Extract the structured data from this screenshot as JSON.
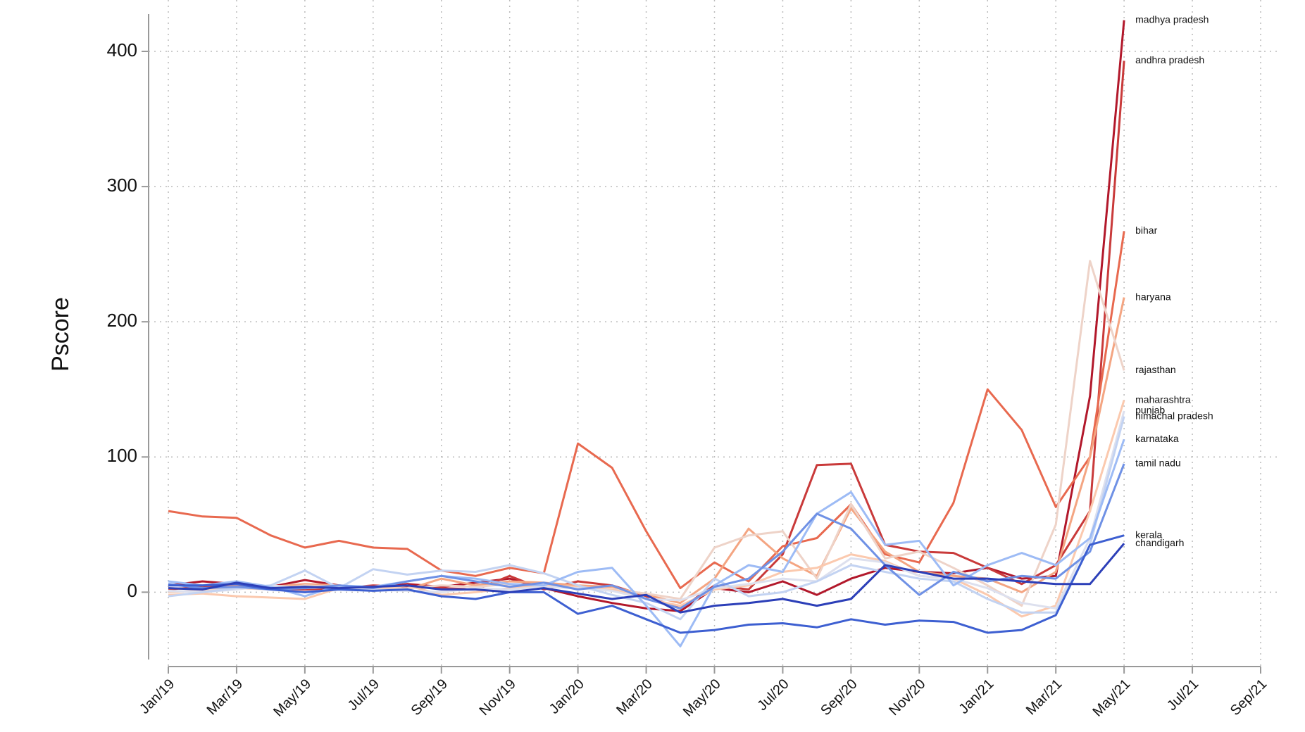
{
  "chart_data": {
    "type": "line",
    "y_label": "Pscore",
    "categories": [
      "Jan/19",
      null,
      "Mar/19",
      null,
      "May/19",
      null,
      "Jul/19",
      null,
      "Sep/19",
      null,
      "Nov/19",
      null,
      "Jan/20",
      null,
      "Mar/20",
      null,
      "May/20",
      null,
      "Jul/20",
      null,
      "Sep/20",
      null,
      "Nov/20",
      null,
      "Jan/21",
      null,
      "Mar/21",
      null,
      "May/21",
      null,
      "Jul/21",
      null,
      "Sep/21"
    ],
    "ylim": [
      -55,
      438
    ],
    "yticks": [
      0,
      100,
      200,
      300,
      400
    ],
    "grid": true,
    "series": [
      {
        "name": "madhya pradesh",
        "color": "#b2182b",
        "values": [
          5,
          8,
          6,
          4,
          9,
          5,
          3,
          6,
          4,
          7,
          10,
          3,
          -3,
          -8,
          -12,
          -14,
          3,
          0,
          8,
          -2,
          10,
          18,
          15,
          14,
          18,
          10,
          12,
          145,
          423,
          null,
          null,
          null,
          null
        ]
      },
      {
        "name": "andhra pradesh",
        "color": "#c93a3a",
        "values": [
          2,
          4,
          7,
          3,
          2,
          3,
          5,
          4,
          3,
          2,
          12,
          2,
          8,
          5,
          -3,
          -12,
          5,
          2,
          28,
          94,
          95,
          35,
          30,
          29,
          18,
          6,
          20,
          60,
          393,
          null,
          null,
          null,
          null
        ]
      },
      {
        "name": "bihar",
        "color": "#e8694f",
        "values": [
          60,
          56,
          55,
          42,
          33,
          38,
          33,
          32,
          16,
          12,
          18,
          14,
          110,
          92,
          45,
          3,
          22,
          8,
          34,
          40,
          65,
          28,
          22,
          66,
          150,
          120,
          63,
          100,
          267,
          null,
          null,
          null,
          null
        ]
      },
      {
        "name": "haryana",
        "color": "#f4a582",
        "values": [
          3,
          2,
          5,
          4,
          6,
          5,
          3,
          2,
          10,
          5,
          8,
          7,
          5,
          4,
          -2,
          -8,
          10,
          47,
          25,
          12,
          62,
          30,
          15,
          12,
          10,
          0,
          15,
          100,
          218,
          null,
          null,
          null,
          null
        ]
      },
      {
        "name": "rajasthan",
        "color": "#eed3c8",
        "values": [
          0,
          1,
          3,
          2,
          5,
          4,
          2,
          3,
          5,
          4,
          6,
          5,
          3,
          2,
          -1,
          -5,
          33,
          42,
          45,
          10,
          65,
          25,
          30,
          18,
          5,
          -10,
          50,
          245,
          164,
          null,
          null,
          null,
          null
        ]
      },
      {
        "name": "maharashtra",
        "color": "#fbc9ae",
        "values": [
          -2,
          -1,
          -3,
          -4,
          -5,
          3,
          2,
          5,
          -2,
          0,
          3,
          5,
          4,
          2,
          -5,
          -10,
          2,
          5,
          15,
          18,
          28,
          23,
          12,
          10,
          -2,
          -18,
          -10,
          60,
          142,
          null,
          null,
          null,
          null
        ]
      },
      {
        "name": "punjab",
        "color": "#dde0ee",
        "values": [
          1,
          0,
          2,
          5,
          3,
          4,
          2,
          1,
          0,
          3,
          2,
          4,
          3,
          1,
          -5,
          -6,
          3,
          6,
          10,
          8,
          25,
          22,
          12,
          10,
          3,
          -8,
          -12,
          40,
          134,
          null,
          null,
          null,
          null
        ]
      },
      {
        "name": "himachal pradesh",
        "color": "#c3d3f2",
        "values": [
          -3,
          0,
          3,
          5,
          16,
          3,
          17,
          13,
          16,
          15,
          20,
          14,
          5,
          -2,
          -8,
          -20,
          10,
          -3,
          0,
          8,
          20,
          15,
          10,
          8,
          -5,
          -15,
          -15,
          35,
          130,
          null,
          null,
          null,
          null
        ]
      },
      {
        "name": "karnataka",
        "color": "#9dbbf5",
        "values": [
          8,
          5,
          8,
          4,
          -3,
          5,
          4,
          8,
          12,
          10,
          6,
          5,
          15,
          18,
          -10,
          -40,
          5,
          20,
          15,
          58,
          74,
          35,
          38,
          5,
          20,
          29,
          20,
          40,
          113,
          null,
          null,
          null,
          null
        ]
      },
      {
        "name": "tamil nadu",
        "color": "#6f91e5",
        "values": [
          6,
          3,
          4,
          2,
          3,
          5,
          3,
          8,
          12,
          8,
          4,
          7,
          2,
          5,
          -5,
          -12,
          4,
          10,
          30,
          58,
          47,
          20,
          -2,
          15,
          8,
          12,
          10,
          30,
          95,
          null,
          null,
          null,
          null
        ]
      },
      {
        "name": "kerala",
        "color": "#3d5fd1",
        "values": [
          5,
          5,
          6,
          2,
          0,
          2,
          1,
          2,
          -3,
          -5,
          0,
          0,
          -16,
          -10,
          -20,
          -30,
          -28,
          -24,
          -23,
          -26,
          -20,
          -24,
          -21,
          -22,
          -30,
          -28,
          -17,
          35,
          42,
          null,
          null,
          null,
          null
        ]
      },
      {
        "name": "chandigarh",
        "color": "#2c3fb8",
        "values": [
          3,
          2,
          7,
          3,
          4,
          3,
          4,
          5,
          2,
          2,
          0,
          3,
          -1,
          -5,
          -2,
          -15,
          -10,
          -8,
          -5,
          -10,
          -5,
          20,
          15,
          10,
          10,
          8,
          6,
          6,
          36,
          null,
          null,
          null,
          null
        ]
      }
    ]
  }
}
